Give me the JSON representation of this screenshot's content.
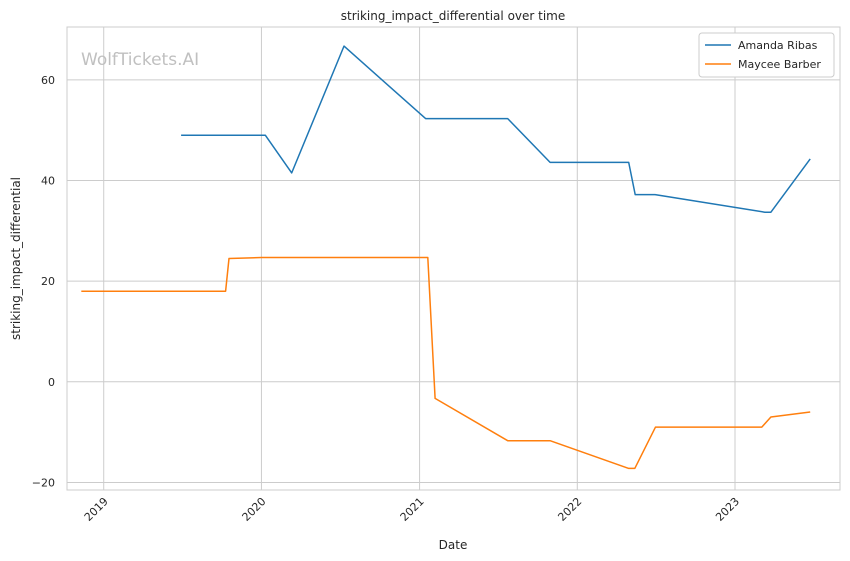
{
  "watermark": "WolfTickets.AI",
  "chart_data": {
    "type": "line",
    "title": "striking_impact_differential over time",
    "xlabel": "Date",
    "ylabel": "striking_impact_differential",
    "x_ticks": [
      "2019",
      "2020",
      "2021",
      "2022",
      "2023"
    ],
    "y_ticks": [
      -20,
      0,
      20,
      40,
      60
    ],
    "xlim": [
      "2018-10-08",
      "2023-09-01"
    ],
    "ylim": [
      -21.5,
      70.5
    ],
    "grid": true,
    "legend_position": "top-right",
    "series": [
      {
        "name": "Amanda Ribas",
        "color": "#1f77b4",
        "points": [
          [
            "2019-06-29",
            49
          ],
          [
            "2020-01-10",
            49
          ],
          [
            "2020-03-11",
            41.5
          ],
          [
            "2020-07-10",
            66.7
          ],
          [
            "2021-01-15",
            52.3
          ],
          [
            "2021-07-24",
            52.3
          ],
          [
            "2021-10-30",
            43.6
          ],
          [
            "2022-04-30",
            43.6
          ],
          [
            "2022-05-15",
            37.2
          ],
          [
            "2022-06-30",
            37.2
          ],
          [
            "2023-03-11",
            33.7
          ],
          [
            "2023-03-25",
            33.7
          ],
          [
            "2023-06-24",
            44.3
          ]
        ]
      },
      {
        "name": "Maycee Barber",
        "color": "#ff7f0e",
        "points": [
          [
            "2018-11-10",
            18
          ],
          [
            "2019-10-10",
            18
          ],
          [
            "2019-10-18",
            24.5
          ],
          [
            "2020-01-01",
            24.7
          ],
          [
            "2021-01-20",
            24.7
          ],
          [
            "2021-02-06",
            -3.3
          ],
          [
            "2021-07-24",
            -11.7
          ],
          [
            "2021-10-30",
            -11.7
          ],
          [
            "2022-04-30",
            -17.2
          ],
          [
            "2022-05-14",
            -17.2
          ],
          [
            "2022-07-01",
            -9
          ],
          [
            "2023-03-04",
            -9
          ],
          [
            "2023-03-25",
            -7
          ],
          [
            "2023-06-24",
            -6
          ]
        ]
      }
    ]
  }
}
